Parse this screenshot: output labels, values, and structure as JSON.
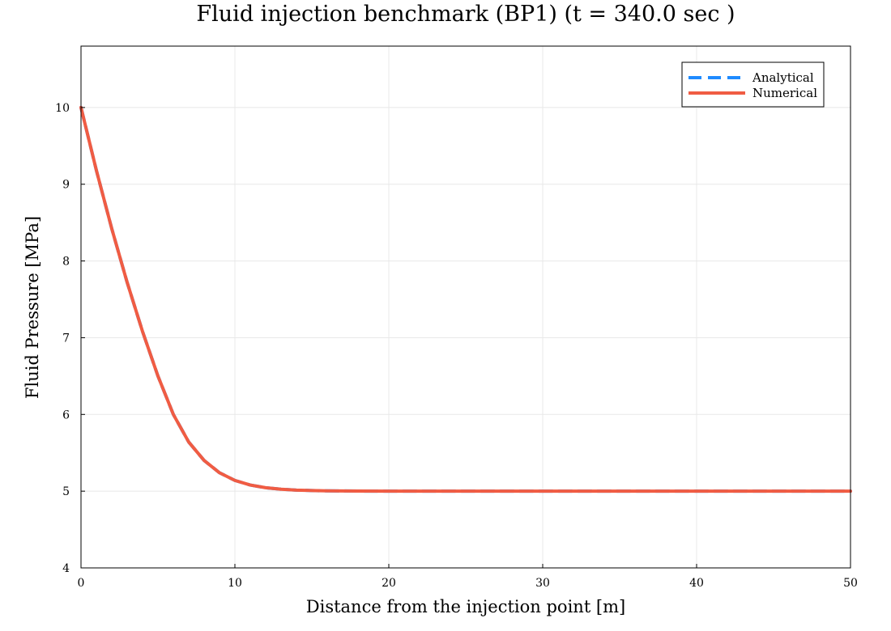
{
  "chart_data": {
    "type": "line",
    "title": "Fluid injection benchmark (BP1) (t = 340.0 sec )",
    "xlabel": "Distance from the injection point [m]",
    "ylabel": "Fluid Pressure [MPa]",
    "xlim": [
      0,
      50
    ],
    "ylim": [
      4,
      10.8
    ],
    "xticks": [
      0,
      10,
      20,
      30,
      40,
      50
    ],
    "yticks": [
      4,
      5,
      6,
      7,
      8,
      9,
      10
    ],
    "grid": true,
    "legend_position": "top-right",
    "series": [
      {
        "name": "Analytical",
        "color": "#1f8bff",
        "style": "dashed",
        "x": [
          0,
          1,
          2,
          3,
          4,
          5,
          6,
          7,
          8,
          9,
          10,
          11,
          12,
          13,
          14,
          15,
          16,
          18,
          20,
          25,
          30,
          35,
          40,
          45,
          50
        ],
        "y": [
          10.0,
          9.18,
          8.42,
          7.72,
          7.08,
          6.5,
          6.0,
          5.64,
          5.4,
          5.24,
          5.14,
          5.08,
          5.045,
          5.025,
          5.014,
          5.008,
          5.004,
          5.001,
          5.0,
          5.0,
          5.0,
          5.0,
          5.0,
          5.0,
          5.0
        ]
      },
      {
        "name": "Numerical",
        "color": "#f05c43",
        "style": "solid",
        "x": [
          0,
          1,
          2,
          3,
          4,
          5,
          6,
          7,
          8,
          9,
          10,
          11,
          12,
          13,
          14,
          15,
          16,
          18,
          20,
          25,
          30,
          35,
          40,
          45,
          50
        ],
        "y": [
          10.0,
          9.18,
          8.42,
          7.72,
          7.08,
          6.5,
          6.0,
          5.64,
          5.4,
          5.24,
          5.14,
          5.08,
          5.045,
          5.025,
          5.014,
          5.008,
          5.004,
          5.001,
          5.0,
          5.0,
          5.0,
          5.0,
          5.0,
          5.0,
          5.0
        ]
      }
    ]
  }
}
